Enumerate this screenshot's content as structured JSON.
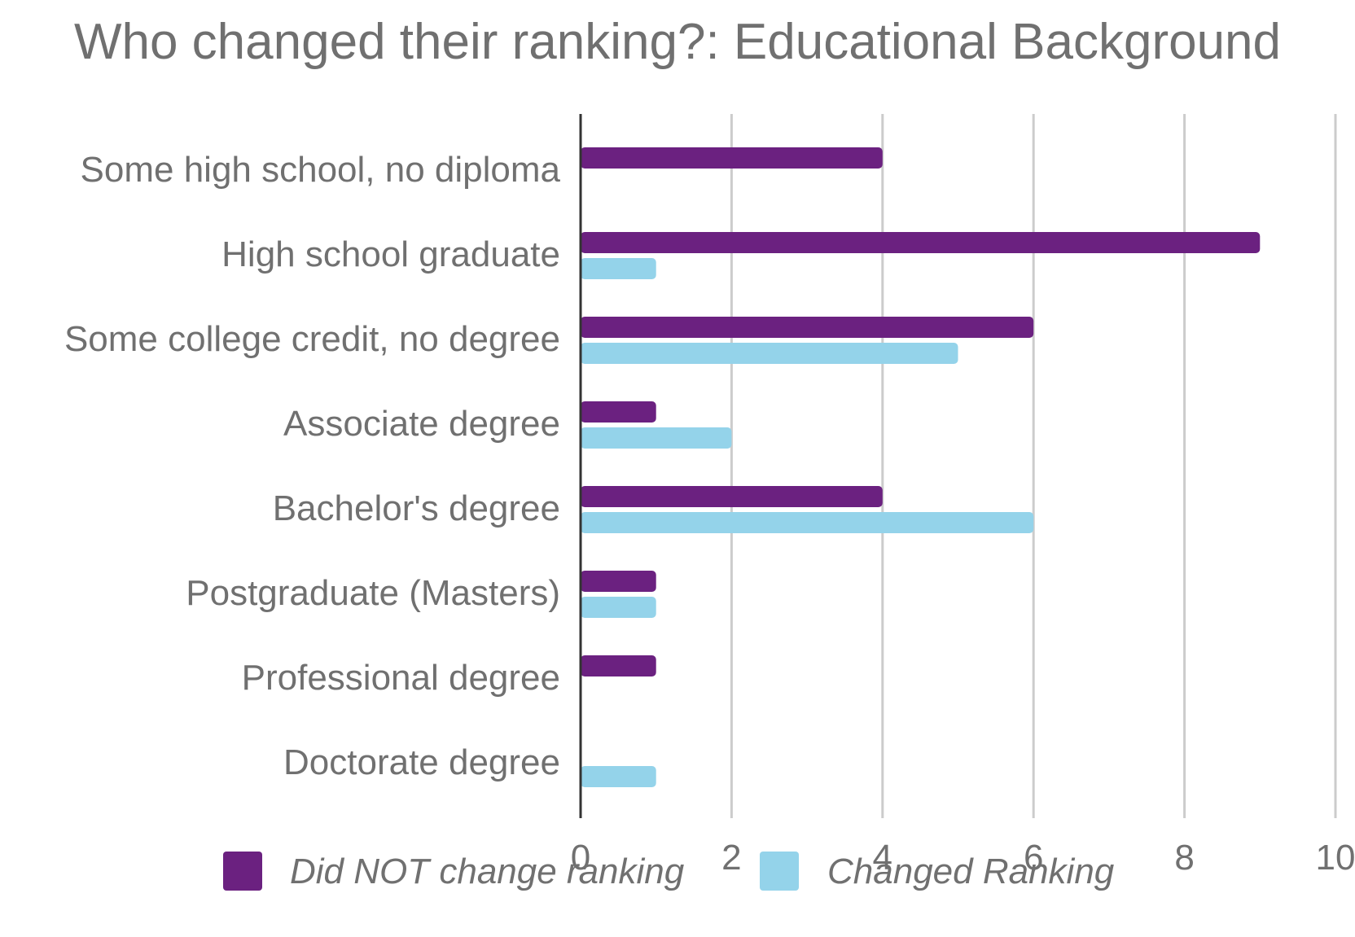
{
  "chart_data": {
    "type": "bar",
    "orientation": "horizontal",
    "title": "Who changed their ranking?: Educational Background",
    "xlabel": "",
    "ylabel": "",
    "categories": [
      "Some high school, no diploma",
      "High school graduate",
      "Some college credit, no degree",
      "Associate degree",
      "Bachelor's degree",
      "Postgraduate (Masters)",
      "Professional degree",
      "Doctorate degree"
    ],
    "series": [
      {
        "name": "Did NOT change ranking",
        "color": "#6b2180",
        "values": [
          4,
          9,
          6,
          1,
          4,
          1,
          1,
          0
        ]
      },
      {
        "name": "Changed Ranking",
        "color": "#94d3ea",
        "values": [
          0,
          1,
          5,
          2,
          6,
          1,
          0,
          1
        ]
      }
    ],
    "xlim": [
      0,
      10
    ],
    "xticks": [
      "0",
      "2",
      "4",
      "6",
      "8",
      "10"
    ],
    "grid": true,
    "gridline_color": "#cccccc",
    "axis_color": "#333333",
    "legend_position": "bottom"
  }
}
